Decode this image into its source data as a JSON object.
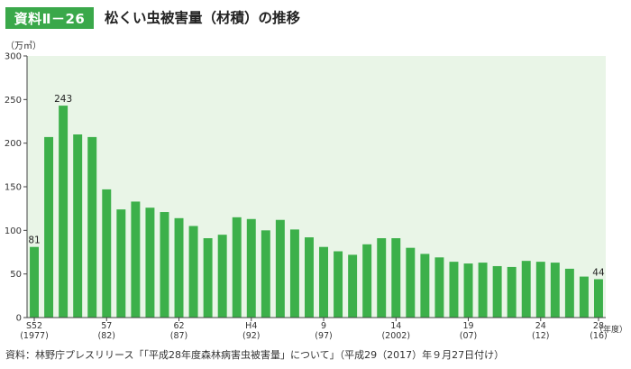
{
  "figure": {
    "label": "資料Ⅱ－26",
    "title": "松くい虫被害量（材積）の推移",
    "unit": "（万㎥）",
    "source": "資料：林野庁プレスリリース「「平成28年度森林病害虫被害量」について」（平成29（2017）年９月27日付け）"
  },
  "colors": {
    "bar": "#3cb04a",
    "plot_bg": "#e9f5e7",
    "axis": "#444444",
    "gridline": "#ffffff"
  },
  "chart_data": {
    "type": "bar",
    "title": "松くい虫被害量（材積）の推移",
    "xlabel": "（年度）",
    "ylabel": "（万㎥）",
    "ylim": [
      0,
      300
    ],
    "yticks": [
      0,
      50,
      100,
      150,
      200,
      250,
      300
    ],
    "grid": false,
    "legend": "none",
    "categories": [
      "1977",
      "1978",
      "1979",
      "1980",
      "1981",
      "1982",
      "1983",
      "1984",
      "1985",
      "1986",
      "1987",
      "1988",
      "1989",
      "1990",
      "1991",
      "1992",
      "1993",
      "1994",
      "1995",
      "1996",
      "1997",
      "1998",
      "1999",
      "2000",
      "2001",
      "2002",
      "2003",
      "2004",
      "2005",
      "2006",
      "2007",
      "2008",
      "2009",
      "2010",
      "2011",
      "2012",
      "2013",
      "2014",
      "2015",
      "2016"
    ],
    "values": [
      81,
      207,
      243,
      210,
      207,
      147,
      124,
      133,
      126,
      121,
      114,
      105,
      91,
      95,
      115,
      113,
      100,
      112,
      101,
      92,
      81,
      76,
      72,
      84,
      91,
      91,
      80,
      73,
      69,
      64,
      62,
      63,
      59,
      58,
      65,
      64,
      63,
      56,
      47,
      44
    ],
    "data_labels": [
      {
        "index": 0,
        "text": "81"
      },
      {
        "index": 2,
        "text": "243"
      },
      {
        "index": 39,
        "text": "44"
      }
    ],
    "xtick_labels": [
      {
        "index": 0,
        "line1": "S52",
        "line2": "(1977)"
      },
      {
        "index": 5,
        "line1": "57",
        "line2": "(82)"
      },
      {
        "index": 10,
        "line1": "62",
        "line2": "(87)"
      },
      {
        "index": 15,
        "line1": "H4",
        "line2": "(92)"
      },
      {
        "index": 20,
        "line1": "9",
        "line2": "(97)"
      },
      {
        "index": 25,
        "line1": "14",
        "line2": "(2002)"
      },
      {
        "index": 30,
        "line1": "19",
        "line2": "(07)"
      },
      {
        "index": 35,
        "line1": "24",
        "line2": "(12)"
      },
      {
        "index": 39,
        "line1": "28",
        "line2": "(16)"
      }
    ]
  }
}
